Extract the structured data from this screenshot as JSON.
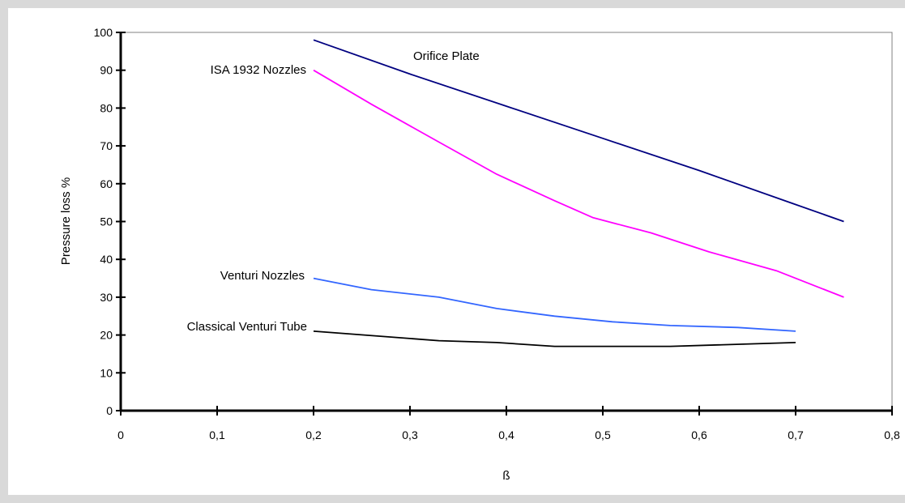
{
  "chart_data": {
    "type": "line",
    "xlabel": "ß",
    "ylabel": "Pressure loss %",
    "xlim": [
      0,
      0.8
    ],
    "ylim": [
      0,
      100
    ],
    "x_ticks": [
      "0",
      "0,1",
      "0,2",
      "0,3",
      "0,4",
      "0,5",
      "0,6",
      "0,7",
      "0,8"
    ],
    "y_ticks": [
      "0",
      "10",
      "20",
      "30",
      "40",
      "50",
      "60",
      "70",
      "80",
      "90",
      "100"
    ],
    "grid": false,
    "legend": "none (series labelled inline)",
    "series": [
      {
        "name": "Orifice Plate",
        "color": "#000080",
        "x": [
          0.2,
          0.3,
          0.4,
          0.5,
          0.6,
          0.7,
          0.75
        ],
        "y": [
          98,
          89,
          80.5,
          72,
          63.5,
          54.5,
          50
        ]
      },
      {
        "name": "ISA 1932 Nozzles",
        "color": "#ff00ff",
        "x": [
          0.2,
          0.26,
          0.33,
          0.39,
          0.45,
          0.49,
          0.55,
          0.61,
          0.68,
          0.75
        ],
        "y": [
          90,
          81,
          71,
          62.5,
          55.5,
          51,
          47,
          42,
          37,
          30
        ]
      },
      {
        "name": "Venturi Nozzles",
        "color": "#3366ff",
        "x": [
          0.2,
          0.26,
          0.33,
          0.39,
          0.45,
          0.51,
          0.57,
          0.64,
          0.7
        ],
        "y": [
          35,
          32,
          30,
          27,
          25,
          23.5,
          22.5,
          22,
          21
        ]
      },
      {
        "name": "Classical Venturi Tube",
        "color": "#000000",
        "x": [
          0.2,
          0.33,
          0.39,
          0.45,
          0.57,
          0.7
        ],
        "y": [
          21,
          18.5,
          18,
          17,
          17,
          18
        ]
      }
    ]
  }
}
